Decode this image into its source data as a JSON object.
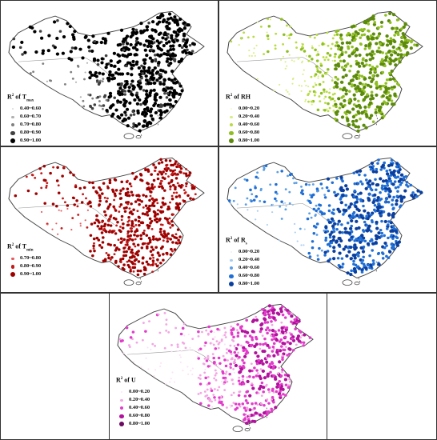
{
  "panels": [
    {
      "id": "p1",
      "legend": {
        "title_main": "R",
        "title_sup": "2",
        "title_of": " of T",
        "title_sub": "max",
        "items": [
          {
            "label": "0.40~0.60",
            "color": "#d9d9d9",
            "size": 1.2
          },
          {
            "label": "0.60~0.70",
            "color": "#b0b0b0",
            "size": 1.7
          },
          {
            "label": "0.70~0.80",
            "color": "#808080",
            "size": 2.2
          },
          {
            "label": "0.80~0.90",
            "color": "#404040",
            "size": 2.7
          },
          {
            "label": "0.90~1.00",
            "color": "#000000",
            "size": 3.2
          }
        ]
      },
      "colors": [
        "#b0b0b0",
        "#808080",
        "#404040",
        "#000000"
      ],
      "pattern": "black"
    },
    {
      "id": "p2",
      "legend": {
        "title_main": "R",
        "title_sup": "2",
        "title_of": " of RH",
        "title_sub": "",
        "items": [
          {
            "label": "0.00~0.20",
            "color": "#f3f9d4",
            "size": 1.2
          },
          {
            "label": "0.20~0.40",
            "color": "#d8ee86",
            "size": 1.7
          },
          {
            "label": "0.40~0.60",
            "color": "#b8dc42",
            "size": 2.2
          },
          {
            "label": "0.60~0.80",
            "color": "#8fbf1f",
            "size": 2.7
          },
          {
            "label": "0.80~1.00",
            "color": "#5c8a0a",
            "size": 3.2
          }
        ]
      },
      "colors": [
        "#d8ee86",
        "#b8dc42",
        "#8fbf1f",
        "#5c8a0a"
      ],
      "pattern": "green"
    },
    {
      "id": "p3",
      "legend": {
        "title_main": "R",
        "title_sup": "2",
        "title_of": " of T",
        "title_sub": "min",
        "items": [
          {
            "label": "0.70~0.80",
            "color": "#e8595e",
            "size": 1.6
          },
          {
            "label": "0.80~0.90",
            "color": "#c41a1a",
            "size": 2.3
          },
          {
            "label": "0.90~1.00",
            "color": "#9e0000",
            "size": 3.0
          }
        ]
      },
      "colors": [
        "#e8595e",
        "#c41a1a",
        "#9e0000"
      ],
      "pattern": "red"
    },
    {
      "id": "p4",
      "legend": {
        "title_main": "R",
        "title_sup": "2",
        "title_of": " of R",
        "title_sub": "s",
        "items": [
          {
            "label": "0.00~0.20",
            "color": "#e6f0fb",
            "size": 1.2
          },
          {
            "label": "0.20~0.40",
            "color": "#a9ccf2",
            "size": 1.7
          },
          {
            "label": "0.40~0.60",
            "color": "#5a9ee6",
            "size": 2.2
          },
          {
            "label": "0.60~0.80",
            "color": "#1f6fd6",
            "size": 2.7
          },
          {
            "label": "0.80~1.00",
            "color": "#0b3f9e",
            "size": 3.2
          }
        ]
      },
      "colors": [
        "#a9ccf2",
        "#5a9ee6",
        "#1f6fd6",
        "#0b3f9e"
      ],
      "pattern": "blue"
    },
    {
      "id": "p5",
      "legend": {
        "title_main": "R",
        "title_sup": "2",
        "title_of": " of U",
        "title_sub": "",
        "items": [
          {
            "label": "0.00~0.20",
            "color": "#fbe3f5",
            "size": 1.2
          },
          {
            "label": "0.20~0.40",
            "color": "#f3a6e3",
            "size": 1.7
          },
          {
            "label": "0.40~0.60",
            "color": "#e33bcb",
            "size": 2.2
          },
          {
            "label": "0.60~0.80",
            "color": "#b0129c",
            "size": 2.7
          },
          {
            "label": "0.80~1.00",
            "color": "#6a0a62",
            "size": 3.2
          }
        ]
      },
      "colors": [
        "#fbe3f5",
        "#f3a6e3",
        "#e33bcb",
        "#b0129c"
      ],
      "pattern": "magenta"
    }
  ]
}
